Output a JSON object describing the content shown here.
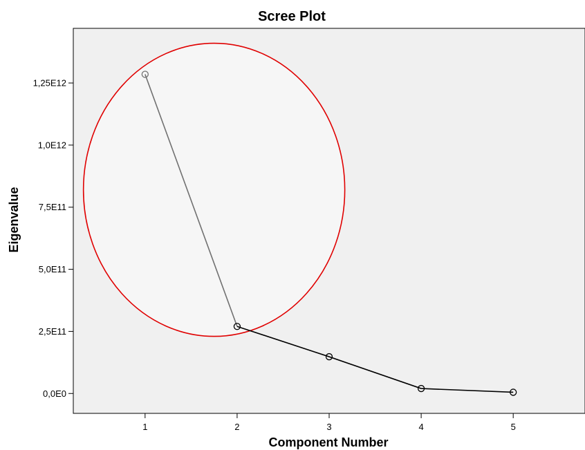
{
  "chart_data": {
    "type": "line",
    "title": "Scree Plot",
    "xlabel": "Component Number",
    "ylabel": "Eigenvalue",
    "x": [
      1,
      2,
      3,
      4,
      5
    ],
    "y": [
      1285000000000,
      270000000000,
      148000000000,
      20000000000,
      5000000000
    ],
    "xlim": [
      0.22,
      5.78
    ],
    "ylim": [
      -80000000000,
      1470000000000
    ],
    "x_ticks": [
      {
        "value": 1,
        "label": "1"
      },
      {
        "value": 2,
        "label": "2"
      },
      {
        "value": 3,
        "label": "3"
      },
      {
        "value": 4,
        "label": "4"
      },
      {
        "value": 5,
        "label": "5"
      }
    ],
    "y_ticks": [
      {
        "value": 0,
        "label": "0,0E0"
      },
      {
        "value": 250000000000,
        "label": "2,5E11"
      },
      {
        "value": 500000000000,
        "label": "5,0E11"
      },
      {
        "value": 750000000000,
        "label": "7,5E11"
      },
      {
        "value": 1000000000000,
        "label": "1,0E12"
      },
      {
        "value": 1250000000000,
        "label": "1,25E12"
      }
    ],
    "grid": false,
    "annotation": {
      "shape": "ellipse",
      "center": {
        "x": 1.75,
        "y": 820000000000
      },
      "radius_x": 1.42,
      "radius_y": 590000000000,
      "color": "#e00000"
    },
    "colors": {
      "plot_background": "#f0f0f0",
      "line": "#000000",
      "highlight_line": "#707070",
      "marker": "#000000"
    }
  }
}
